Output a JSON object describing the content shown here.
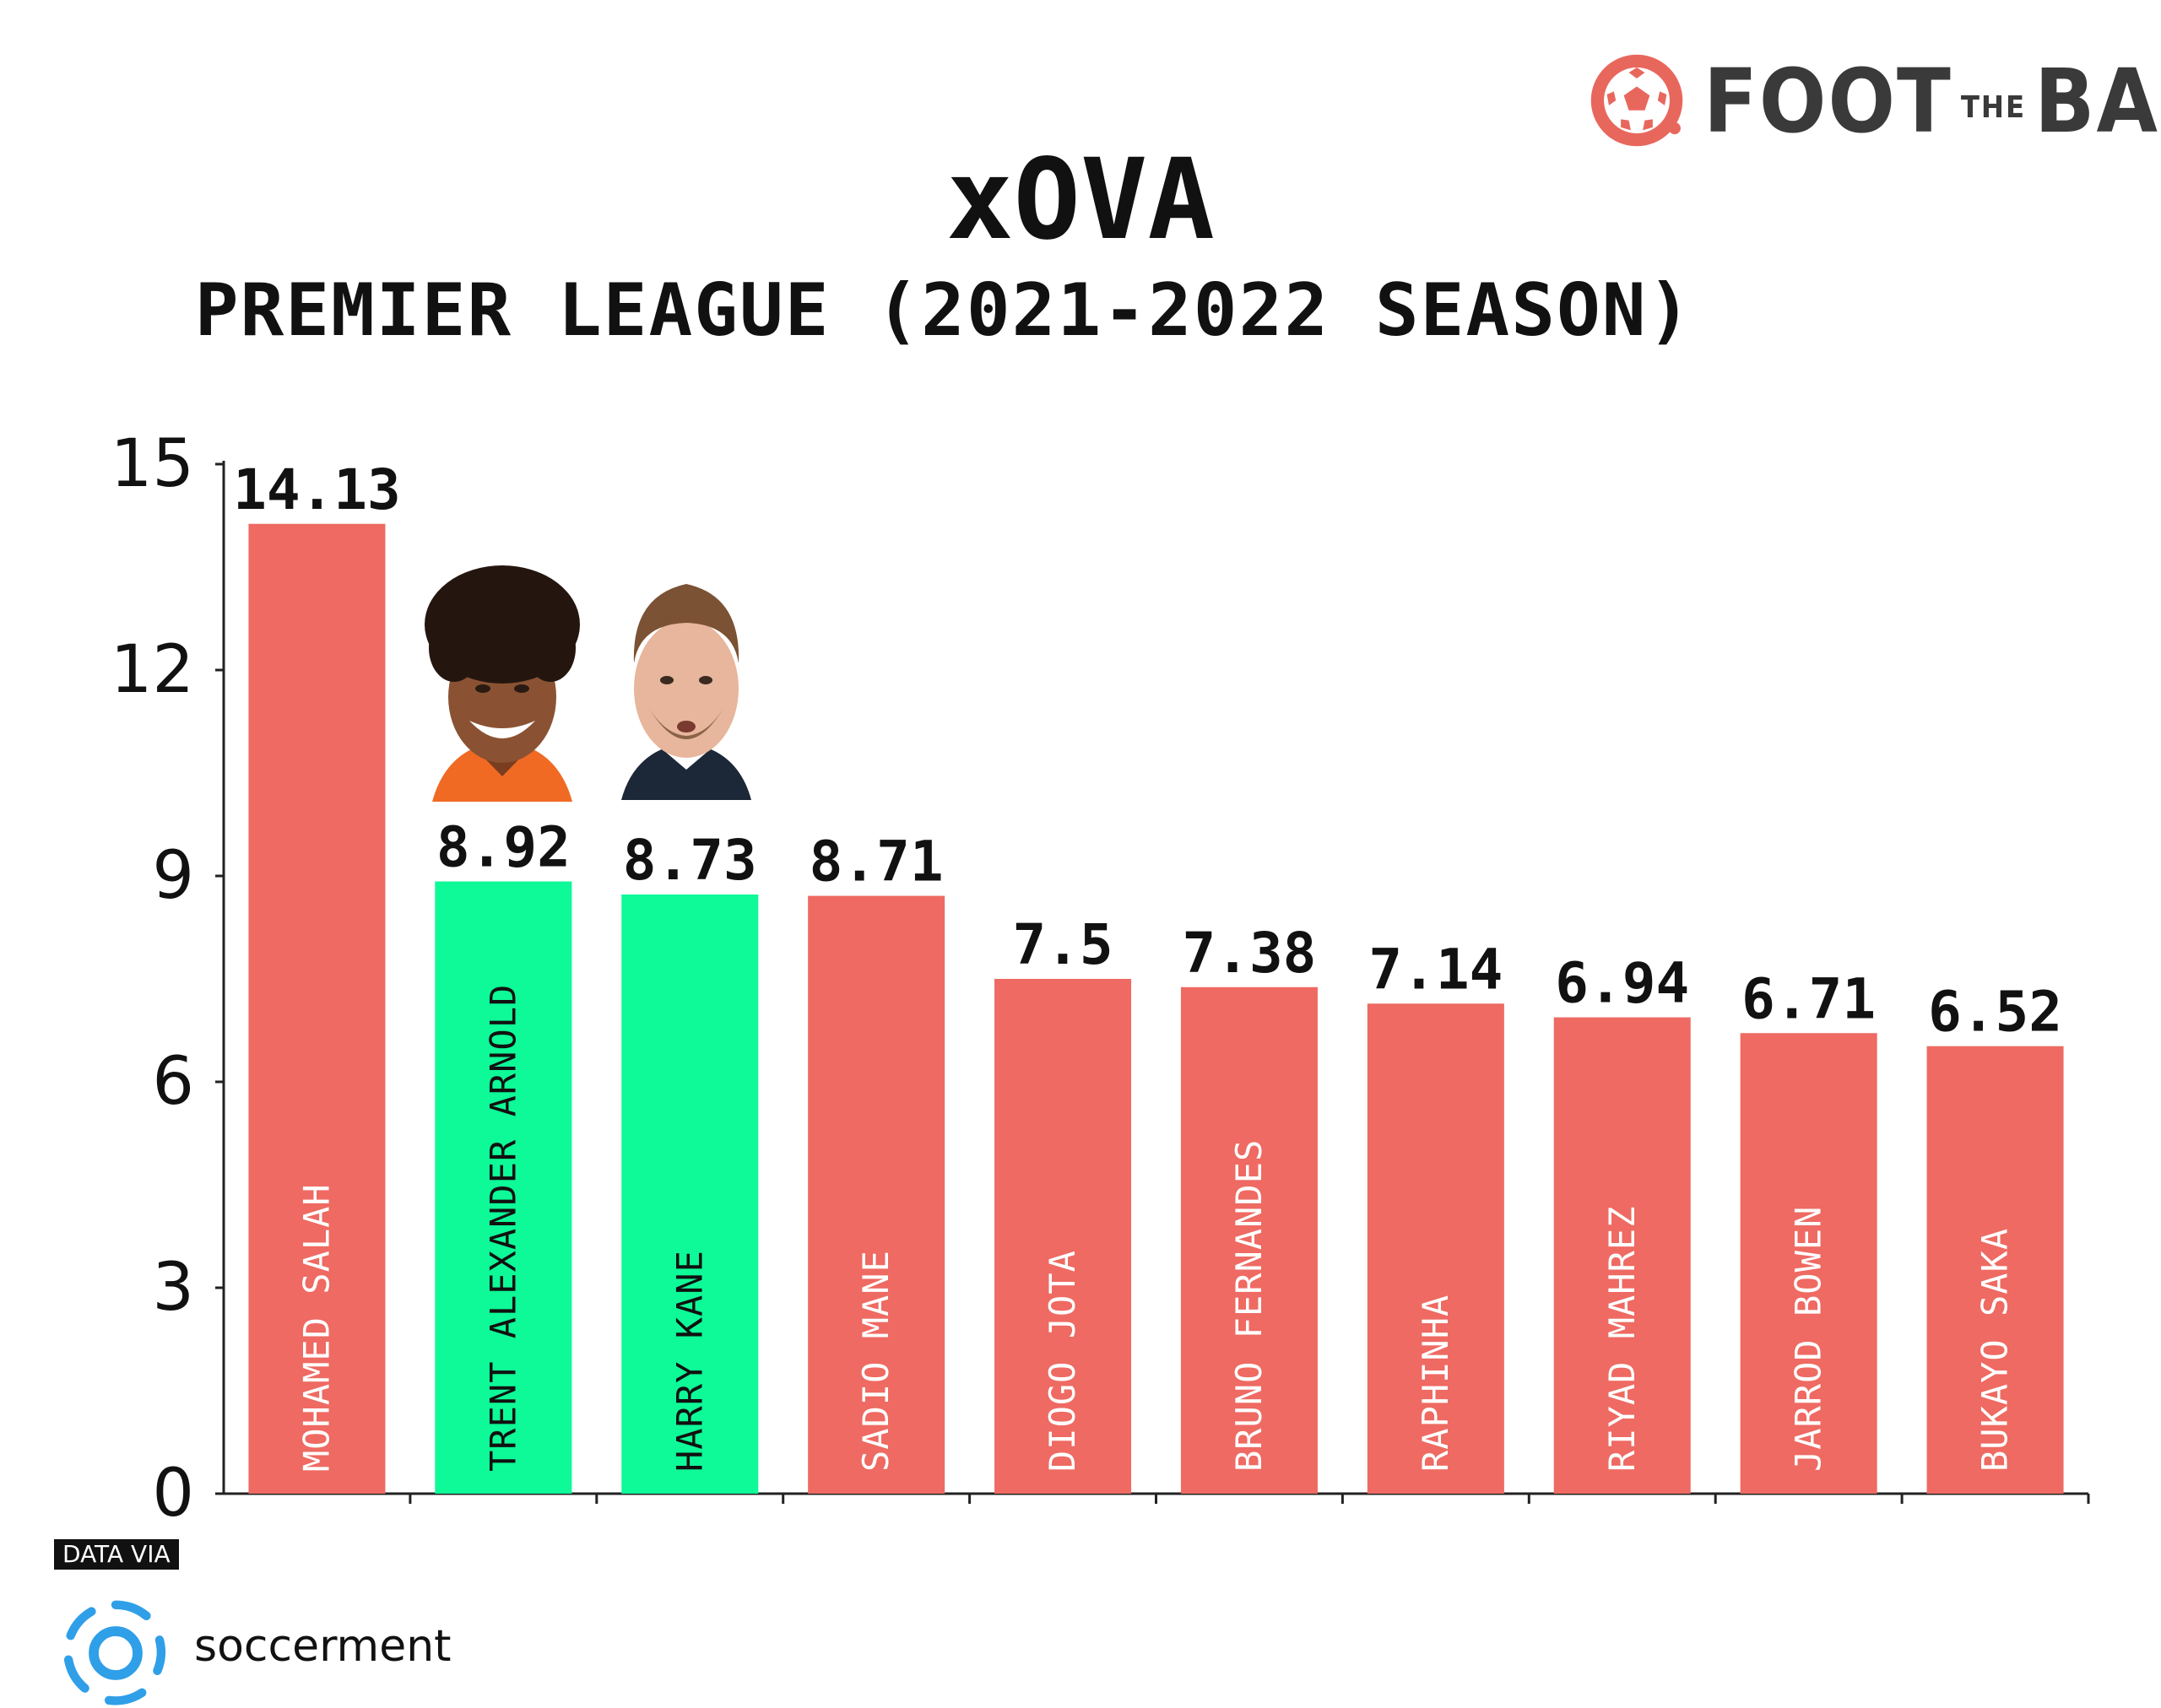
{
  "brand": {
    "word_left": "FOOT",
    "word_small": "THE",
    "word_right": "BALL",
    "color": "#e8675d"
  },
  "title": "xOVA",
  "subtitle": "PREMIER LEAGUE (2021-2022 SEASON)",
  "chart_data": {
    "type": "bar",
    "title": "xOVA",
    "subtitle": "PREMIER LEAGUE (2021-2022 SEASON)",
    "categories": [
      "MOHAMED SALAH",
      "TRENT ALEXANDER ARNOLD",
      "HARRY KANE",
      "SADIO MANE",
      "DIOGO JOTA",
      "BRUNO FERNANDES",
      "RAPHINHA",
      "RIYAD MAHREZ",
      "JARROD BOWEN",
      "BUKAYO SAKA"
    ],
    "values": [
      14.13,
      8.92,
      8.73,
      8.71,
      7.5,
      7.38,
      7.14,
      6.94,
      6.71,
      6.52
    ],
    "value_labels": [
      "14.13",
      "8.92",
      "8.73",
      "8.71",
      "7.5",
      "7.38",
      "7.14",
      "6.94",
      "6.71",
      "6.52"
    ],
    "highlighted": [
      false,
      true,
      true,
      false,
      false,
      false,
      false,
      false,
      false,
      false
    ],
    "colors": {
      "default": "#ee6a62",
      "highlight": "#0ef997",
      "default_text": "#ffffff",
      "highlight_text": "#111111"
    },
    "yticks": [
      0,
      3,
      6,
      9,
      12,
      15
    ],
    "ylim": [
      0,
      15
    ],
    "xlabel": "",
    "ylabel": "",
    "grid": false,
    "legend": "none"
  },
  "credit": {
    "label": "DATA VIA",
    "name": "soccerment",
    "color": "#2f9fe8"
  }
}
